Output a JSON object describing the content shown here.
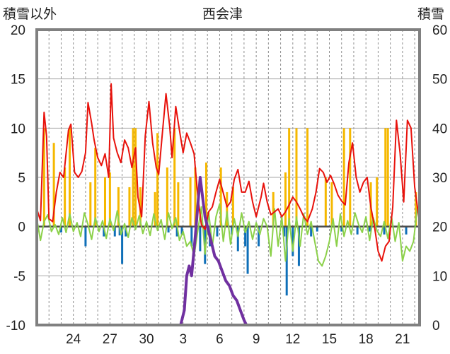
{
  "chart_data": {
    "type": "line",
    "title": "西会津",
    "ylabel_left": "積雪以外",
    "ylabel_right": "積雪",
    "ylim_left": [
      -10,
      20
    ],
    "ylim_right": [
      0,
      60
    ],
    "yticks_left": [
      "20",
      "15",
      "10",
      "5",
      "0",
      "-5",
      "-10"
    ],
    "yticks_right": [
      "60",
      "50",
      "40",
      "30",
      "20",
      "10",
      "0"
    ],
    "xlim": [
      21,
      52.4
    ],
    "xticks": [
      {
        "x": 24,
        "label": "24"
      },
      {
        "x": 27,
        "label": "27"
      },
      {
        "x": 30,
        "label": "30"
      },
      {
        "x": 33,
        "label": "3"
      },
      {
        "x": 36,
        "label": "6"
      },
      {
        "x": 39,
        "label": "9"
      },
      {
        "x": 42,
        "label": "12"
      },
      {
        "x": 45,
        "label": "15"
      },
      {
        "x": 48,
        "label": "18"
      },
      {
        "x": 51,
        "label": "21"
      }
    ],
    "grid": "vertical-dashed-and-horizontal",
    "colors": {
      "temperature": "#e8120c",
      "sunshine": "#f5b800",
      "precip": "#0f6fb8",
      "wind": "#8cd14a",
      "snow": "#7030a0",
      "frame": "#808080",
      "zero": "#4d4d4d"
    },
    "series": [
      {
        "key": "temperature",
        "axis": "left",
        "points": [
          [
            21.0,
            1.8
          ],
          [
            21.3,
            0.6
          ],
          [
            21.6,
            11.6
          ],
          [
            21.8,
            9.2
          ],
          [
            22.0,
            0.8
          ],
          [
            22.3,
            0.5
          ],
          [
            22.6,
            3.5
          ],
          [
            22.9,
            5.5
          ],
          [
            23.2,
            5.0
          ],
          [
            23.6,
            9.8
          ],
          [
            23.8,
            10.4
          ],
          [
            24.1,
            5.5
          ],
          [
            24.4,
            5.0
          ],
          [
            24.7,
            5.6
          ],
          [
            25.0,
            7.5
          ],
          [
            25.2,
            12.6
          ],
          [
            25.5,
            10.5
          ],
          [
            25.7,
            8.8
          ],
          [
            26.0,
            7.0
          ],
          [
            26.3,
            6.2
          ],
          [
            26.6,
            7.4
          ],
          [
            26.9,
            5.0
          ],
          [
            27.1,
            14.5
          ],
          [
            27.3,
            9.0
          ],
          [
            27.6,
            7.5
          ],
          [
            27.9,
            6.5
          ],
          [
            28.2,
            8.8
          ],
          [
            28.5,
            8.0
          ],
          [
            28.8,
            6.0
          ],
          [
            29.1,
            8.0
          ],
          [
            29.3,
            3.0
          ],
          [
            29.6,
            1.0
          ],
          [
            29.9,
            9.2
          ],
          [
            30.2,
            12.7
          ],
          [
            30.5,
            8.5
          ],
          [
            30.8,
            6.0
          ],
          [
            31.0,
            5.3
          ],
          [
            31.3,
            9.5
          ],
          [
            31.6,
            13.5
          ],
          [
            31.9,
            10.2
          ],
          [
            32.1,
            7.0
          ],
          [
            32.4,
            12.2
          ],
          [
            32.7,
            9.8
          ],
          [
            33.0,
            7.5
          ],
          [
            33.3,
            9.5
          ],
          [
            33.6,
            8.5
          ],
          [
            33.9,
            7.4
          ],
          [
            34.2,
            3.2
          ],
          [
            34.5,
            0.2
          ],
          [
            34.8,
            -0.3
          ],
          [
            35.1,
            1.5
          ],
          [
            35.4,
            2.0
          ],
          [
            35.7,
            3.5
          ],
          [
            36.0,
            4.8
          ],
          [
            36.3,
            3.4
          ],
          [
            36.6,
            2.0
          ],
          [
            36.9,
            2.5
          ],
          [
            37.2,
            4.8
          ],
          [
            37.5,
            5.8
          ],
          [
            37.8,
            3.5
          ],
          [
            38.1,
            3.5
          ],
          [
            38.4,
            4.6
          ],
          [
            38.7,
            2.5
          ],
          [
            39.0,
            1.0
          ],
          [
            39.4,
            3.0
          ],
          [
            39.6,
            4.4
          ],
          [
            39.9,
            2.5
          ],
          [
            40.2,
            1.2
          ],
          [
            40.5,
            1.5
          ],
          [
            40.8,
            1.8
          ],
          [
            41.1,
            1.0
          ],
          [
            41.4,
            1.5
          ],
          [
            41.7,
            2.2
          ],
          [
            42.0,
            3.0
          ],
          [
            42.3,
            2.5
          ],
          [
            42.6,
            1.8
          ],
          [
            42.9,
            1.0
          ],
          [
            43.2,
            0.5
          ],
          [
            43.6,
            1.8
          ],
          [
            43.9,
            3.5
          ],
          [
            44.2,
            5.9
          ],
          [
            44.5,
            5.5
          ],
          [
            44.8,
            4.5
          ],
          [
            45.1,
            5.2
          ],
          [
            45.4,
            4.3
          ],
          [
            45.7,
            3.2
          ],
          [
            46.0,
            2.6
          ],
          [
            46.3,
            2.2
          ],
          [
            46.6,
            6.5
          ],
          [
            46.9,
            8.5
          ],
          [
            47.2,
            5.0
          ],
          [
            47.5,
            3.5
          ],
          [
            47.8,
            4.5
          ],
          [
            48.1,
            5.0
          ],
          [
            48.4,
            2.0
          ],
          [
            48.7,
            0.0
          ],
          [
            49.0,
            -2.5
          ],
          [
            49.3,
            -3.5
          ],
          [
            49.6,
            -2.0
          ],
          [
            49.9,
            -1.5
          ],
          [
            50.2,
            2.0
          ],
          [
            50.5,
            10.8
          ],
          [
            50.8,
            7.5
          ],
          [
            51.1,
            2.5
          ],
          [
            51.4,
            10.8
          ],
          [
            51.7,
            10.0
          ],
          [
            52.0,
            4.0
          ],
          [
            52.4,
            0.4
          ]
        ]
      },
      {
        "key": "wind",
        "axis": "left",
        "points": [
          [
            21.0,
            0.8
          ],
          [
            21.3,
            -1.4
          ],
          [
            21.6,
            0.5
          ],
          [
            21.9,
            1.2
          ],
          [
            22.2,
            -0.5
          ],
          [
            22.5,
            0.2
          ],
          [
            22.8,
            -0.8
          ],
          [
            23.1,
            0.9
          ],
          [
            23.4,
            -0.6
          ],
          [
            23.7,
            1.3
          ],
          [
            24.0,
            -0.5
          ],
          [
            24.3,
            0.4
          ],
          [
            24.6,
            -1.0
          ],
          [
            24.9,
            1.4
          ],
          [
            25.2,
            0.2
          ],
          [
            25.5,
            -1.3
          ],
          [
            25.8,
            0.9
          ],
          [
            26.1,
            -0.5
          ],
          [
            26.4,
            0.6
          ],
          [
            26.7,
            -1.2
          ],
          [
            27.0,
            0.8
          ],
          [
            27.3,
            -0.4
          ],
          [
            27.6,
            1.6
          ],
          [
            27.9,
            -0.8
          ],
          [
            28.2,
            0.3
          ],
          [
            28.5,
            -1.1
          ],
          [
            28.8,
            0.9
          ],
          [
            29.1,
            -0.3
          ],
          [
            29.4,
            1.1
          ],
          [
            29.7,
            -0.7
          ],
          [
            30.0,
            0.5
          ],
          [
            30.3,
            -0.9
          ],
          [
            30.6,
            1.3
          ],
          [
            30.9,
            -0.4
          ],
          [
            31.2,
            0.7
          ],
          [
            31.5,
            -1.3
          ],
          [
            31.8,
            1.4
          ],
          [
            32.1,
            -0.2
          ],
          [
            32.4,
            0.9
          ],
          [
            32.7,
            -1.4
          ],
          [
            33.0,
            -0.5
          ],
          [
            33.3,
            -2.0
          ],
          [
            33.6,
            -1.5
          ],
          [
            33.9,
            -3.0
          ],
          [
            34.2,
            -0.5
          ],
          [
            34.5,
            2.0
          ],
          [
            34.8,
            -2.8
          ],
          [
            35.1,
            1.5
          ],
          [
            35.4,
            -2.0
          ],
          [
            35.7,
            1.0
          ],
          [
            36.0,
            2.3
          ],
          [
            36.3,
            -1.5
          ],
          [
            36.6,
            1.5
          ],
          [
            36.9,
            -1.8
          ],
          [
            37.2,
            0.8
          ],
          [
            37.5,
            -1.0
          ],
          [
            37.8,
            1.4
          ],
          [
            38.1,
            -0.6
          ],
          [
            38.4,
            0.5
          ],
          [
            38.7,
            -1.3
          ],
          [
            39.0,
            0.4
          ],
          [
            39.3,
            -0.8
          ],
          [
            39.6,
            0.8
          ],
          [
            39.9,
            0.0
          ],
          [
            40.2,
            -3.0
          ],
          [
            40.5,
            1.8
          ],
          [
            40.8,
            -2.0
          ],
          [
            41.1,
            1.0
          ],
          [
            41.4,
            -3.5
          ],
          [
            41.7,
            0.8
          ],
          [
            42.0,
            -2.5
          ],
          [
            42.3,
            1.0
          ],
          [
            42.6,
            -2.0
          ],
          [
            42.9,
            1.3
          ],
          [
            43.2,
            -0.8
          ],
          [
            43.5,
            0.5
          ],
          [
            43.8,
            -1.5
          ],
          [
            44.1,
            -3.5
          ],
          [
            44.4,
            -4.0
          ],
          [
            44.7,
            -3.0
          ],
          [
            45.0,
            -1.5
          ],
          [
            45.3,
            0.8
          ],
          [
            45.6,
            -2.0
          ],
          [
            45.9,
            1.3
          ],
          [
            46.2,
            -1.0
          ],
          [
            46.5,
            0.6
          ],
          [
            46.8,
            -0.8
          ],
          [
            47.1,
            1.4
          ],
          [
            47.4,
            0.2
          ],
          [
            47.7,
            -0.6
          ],
          [
            48.0,
            1.0
          ],
          [
            48.3,
            -1.4
          ],
          [
            48.6,
            0.9
          ],
          [
            48.9,
            -0.4
          ],
          [
            49.2,
            -1.0
          ],
          [
            49.5,
            0.5
          ],
          [
            49.8,
            -1.2
          ],
          [
            50.1,
            1.0
          ],
          [
            50.4,
            -1.5
          ],
          [
            50.7,
            0.4
          ],
          [
            51.0,
            -3.5
          ],
          [
            51.3,
            -2.0
          ],
          [
            51.6,
            -2.5
          ],
          [
            51.9,
            -1.5
          ],
          [
            52.2,
            1.8
          ],
          [
            52.4,
            1.5
          ]
        ]
      },
      {
        "key": "snow",
        "axis": "right",
        "points": [
          [
            21.0,
            0
          ],
          [
            32.8,
            0
          ],
          [
            33.1,
            3
          ],
          [
            33.3,
            10
          ],
          [
            33.5,
            12
          ],
          [
            33.7,
            10
          ],
          [
            34.0,
            18
          ],
          [
            34.2,
            24
          ],
          [
            34.4,
            30
          ],
          [
            34.6,
            26
          ],
          [
            34.8,
            22
          ],
          [
            35.0,
            20
          ],
          [
            35.3,
            17
          ],
          [
            35.6,
            14
          ],
          [
            35.9,
            13
          ],
          [
            36.2,
            11
          ],
          [
            36.5,
            9
          ],
          [
            36.8,
            8
          ],
          [
            37.1,
            6
          ],
          [
            37.4,
            5
          ],
          [
            37.7,
            3
          ],
          [
            38.0,
            1
          ],
          [
            38.2,
            0
          ],
          [
            52.4,
            0
          ]
        ]
      }
    ],
    "bars": {
      "sunshine": [
        [
          21.6,
          10.0
        ],
        [
          22.4,
          8.5
        ],
        [
          23.3,
          6.0
        ],
        [
          23.7,
          10.0
        ],
        [
          25.4,
          4.5
        ],
        [
          25.8,
          8.0
        ],
        [
          26.6,
          5.0
        ],
        [
          27.0,
          5.5
        ],
        [
          27.7,
          4.0
        ],
        [
          28.6,
          4.0
        ],
        [
          28.9,
          10.0
        ],
        [
          29.1,
          10.0
        ],
        [
          29.5,
          4.0
        ],
        [
          30.7,
          3.5
        ],
        [
          30.9,
          9.5
        ],
        [
          31.7,
          6.0
        ],
        [
          32.3,
          10.0
        ],
        [
          32.6,
          4.5
        ],
        [
          33.6,
          5.0
        ],
        [
          34.0,
          6.0
        ],
        [
          34.9,
          6.5
        ],
        [
          36.1,
          6.0
        ],
        [
          36.6,
          3.5
        ],
        [
          37.1,
          4.0
        ],
        [
          40.4,
          3.5
        ],
        [
          41.4,
          5.5
        ],
        [
          41.7,
          10.0
        ],
        [
          42.3,
          10.0
        ],
        [
          43.2,
          10.0
        ],
        [
          44.7,
          5.0
        ],
        [
          45.2,
          4.5
        ],
        [
          46.2,
          10.0
        ],
        [
          46.7,
          10.0
        ],
        [
          48.4,
          4.5
        ],
        [
          48.9,
          5.0
        ],
        [
          49.6,
          10.0
        ],
        [
          49.8,
          10.0
        ],
        [
          52.1,
          3.5
        ]
      ],
      "precip": [
        [
          23.0,
          -0.6
        ],
        [
          25.0,
          -2.0
        ],
        [
          26.5,
          -1.0
        ],
        [
          27.4,
          -1.0
        ],
        [
          27.8,
          -0.9
        ],
        [
          28.0,
          -3.8
        ],
        [
          28.3,
          -1.0
        ],
        [
          31.8,
          -0.6
        ],
        [
          32.5,
          -1.0
        ],
        [
          32.9,
          -0.8
        ],
        [
          33.7,
          -2.0
        ],
        [
          34.4,
          -2.5
        ],
        [
          34.8,
          -3.8
        ],
        [
          35.2,
          -2.0
        ],
        [
          35.8,
          -1.0
        ],
        [
          37.0,
          -0.8
        ],
        [
          37.5,
          -2.5
        ],
        [
          38.1,
          -2.0
        ],
        [
          38.3,
          -4.8
        ],
        [
          39.2,
          -2.0
        ],
        [
          41.3,
          -1.0
        ],
        [
          41.5,
          -7.0
        ],
        [
          42.0,
          -3.0
        ],
        [
          42.5,
          -4.0
        ],
        [
          43.5,
          -1.0
        ],
        [
          44.0,
          -0.5
        ],
        [
          46.0,
          -0.5
        ],
        [
          47.3,
          -0.8
        ],
        [
          48.3,
          -0.5
        ],
        [
          49.5,
          -0.8
        ],
        [
          51.3,
          -0.8
        ]
      ]
    }
  }
}
